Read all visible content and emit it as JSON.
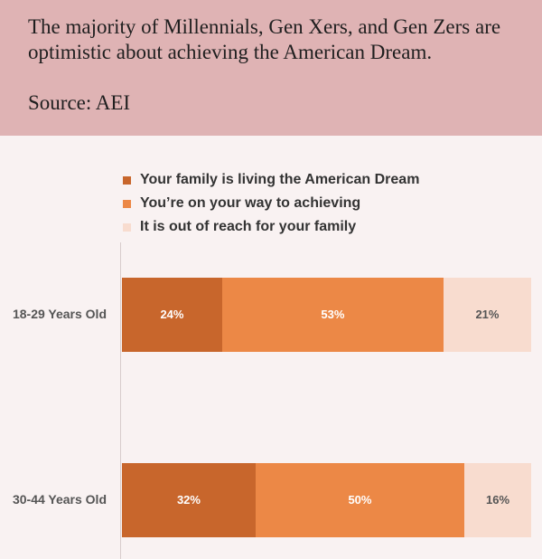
{
  "header": {
    "title": "The majority of Millennials, Gen Xers, and Gen Zers are optimistic about achieving the American Dream.",
    "source": "Source: AEI"
  },
  "chart_data": {
    "type": "bar",
    "orientation": "horizontal",
    "stacked": true,
    "categories": [
      "18-29 Years Old",
      "30-44 Years Old"
    ],
    "series": [
      {
        "name": "Your family is living the American Dream",
        "values": [
          24,
          32
        ],
        "labels": [
          "24%",
          "32%"
        ],
        "color": "#c8662c",
        "label_color": "#ffffff"
      },
      {
        "name": "You’re on your way to achieving",
        "values": [
          53,
          50
        ],
        "labels": [
          "53%",
          "50%"
        ],
        "color": "#ec8846",
        "label_color": "#ffffff"
      },
      {
        "name": "It is out of reach for your family",
        "values": [
          21,
          16
        ],
        "labels": [
          "21%",
          "16%"
        ],
        "color": "#f8dccf",
        "label_color": "#555555"
      }
    ],
    "legend_position": "top-left",
    "grid": false
  }
}
